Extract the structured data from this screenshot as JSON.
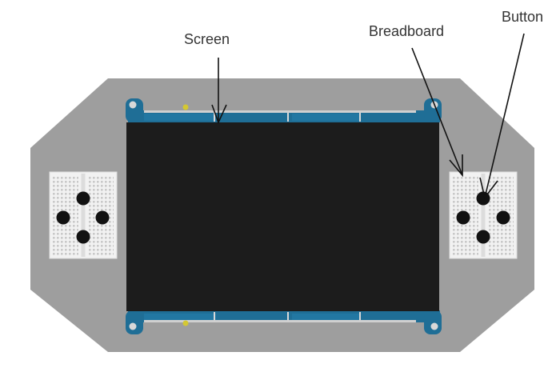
{
  "labels": {
    "screen": "Screen",
    "breadboard": "Breadboard",
    "button": "Button"
  },
  "colors": {
    "background": "#ffffff",
    "board": "#9e9e9e",
    "screen": "#1c1c1c",
    "pcb": "#1f6e96",
    "breadboard": "#f2f2f2",
    "button": "#111111",
    "leader": "#111111",
    "led": "#d4c832"
  },
  "components": {
    "screen": "display-panel",
    "breadboards": [
      "left-mini-breadboard",
      "right-mini-breadboard"
    ],
    "button_pads": [
      "left-dpad",
      "right-dpad"
    ]
  }
}
